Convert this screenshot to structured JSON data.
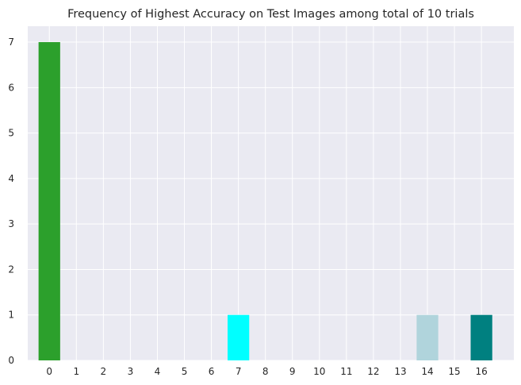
{
  "chart_data": {
    "type": "bar",
    "title": "Frequency of Highest Accuracy on Test Images among total of 10 trials",
    "xlabel": "",
    "ylabel": "",
    "categories": [
      "0",
      "1",
      "2",
      "3",
      "4",
      "5",
      "6",
      "7",
      "8",
      "9",
      "10",
      "11",
      "12",
      "13",
      "14",
      "15",
      "16"
    ],
    "values": [
      7,
      0,
      0,
      0,
      0,
      0,
      0,
      1,
      0,
      0,
      0,
      0,
      0,
      0,
      1,
      0,
      1
    ],
    "bar_colors": [
      "#2ca02c",
      "#2ca02c",
      "#2ca02c",
      "#2ca02c",
      "#2ca02c",
      "#2ca02c",
      "#2ca02c",
      "#00ffff",
      "#2ca02c",
      "#2ca02c",
      "#2ca02c",
      "#2ca02c",
      "#2ca02c",
      "#2ca02c",
      "#b0d4dc",
      "#2ca02c",
      "#008080"
    ],
    "yticks": [
      0,
      1,
      2,
      3,
      4,
      5,
      6,
      7
    ],
    "ylim": [
      0,
      7.35
    ],
    "xlim": [
      -0.8,
      17.2
    ],
    "grid": true,
    "background_color": "#eaeaf2",
    "grid_color": "#ffffff"
  }
}
